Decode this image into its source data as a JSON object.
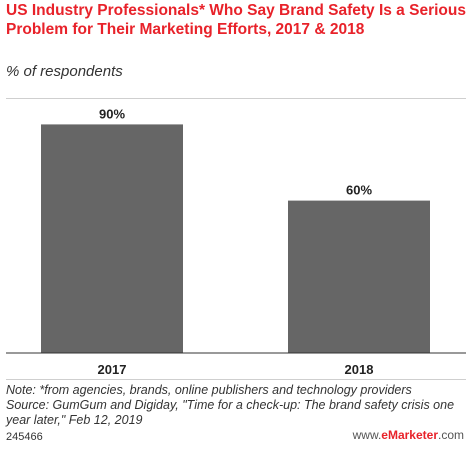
{
  "header": {
    "title": "US Industry Professionals* Who Say Brand Safety Is a Serious Problem for Their Marketing Efforts, 2017 & 2018",
    "subtitle": "% of respondents"
  },
  "footer": {
    "note": "Note: *from agencies, brands, online publishers and technology providers",
    "source": "Source: GumGum and Digiday, \"Time for a check-up: The brand safety crisis one year later,\" Feb 12, 2019",
    "chart_id": "245466",
    "brand_prefix": "www.",
    "brand_name": "eMarketer",
    "brand_suffix": ".com"
  },
  "colors": {
    "title": "#e8222a",
    "bar": "#666666",
    "text": "#333333"
  },
  "chart_data": {
    "type": "bar",
    "title": "US Industry Professionals* Who Say Brand Safety Is a Serious Problem for Their Marketing Efforts, 2017 & 2018",
    "subtitle": "% of respondents",
    "categories": [
      "2017",
      "2018"
    ],
    "values": [
      90,
      60
    ],
    "value_labels": [
      "90%",
      "60%"
    ],
    "ylim": [
      0,
      100
    ],
    "grid": false,
    "legend": "none"
  }
}
